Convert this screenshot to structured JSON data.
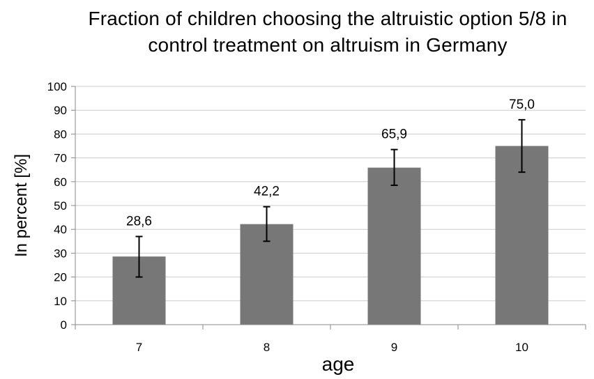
{
  "chart_data": {
    "type": "bar",
    "title": "Fraction of children choosing the altruistic option 5/8 in control treatment on altruism in Germany",
    "xlabel": "age",
    "ylabel": "In percent [%]",
    "categories": [
      "7",
      "8",
      "9",
      "10"
    ],
    "values": [
      28.6,
      42.2,
      65.9,
      75.0
    ],
    "value_labels": [
      "28,6",
      "42,2",
      "65,9",
      "75,0"
    ],
    "error_low": [
      20,
      35,
      58.5,
      64
    ],
    "error_high": [
      37,
      49.5,
      73.5,
      86
    ],
    "ylim": [
      0,
      100
    ],
    "yticks": [
      "0",
      "10",
      "20",
      "30",
      "40",
      "50",
      "60",
      "70",
      "80",
      "90",
      "100"
    ],
    "grid": true,
    "legend": "none",
    "bar_color": "#777777",
    "grid_color": "#cccccc"
  }
}
